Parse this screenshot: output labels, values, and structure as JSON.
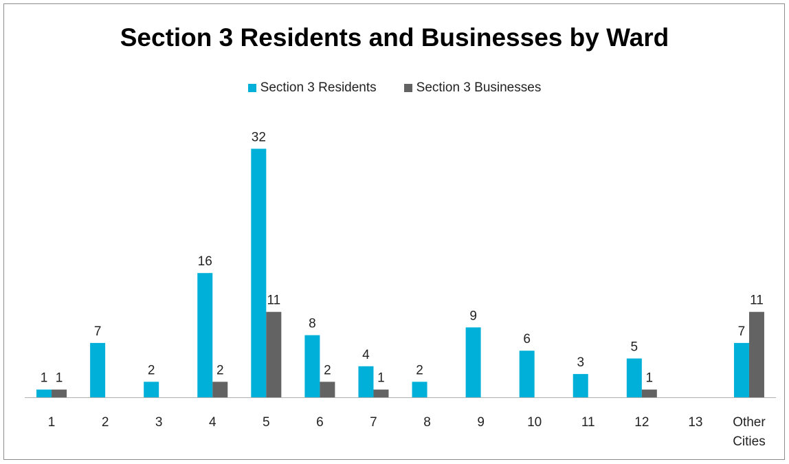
{
  "chart_data": {
    "type": "bar",
    "title": "Section 3 Residents and Businesses by Ward",
    "xlabel": "",
    "ylabel": "",
    "categories": [
      "1",
      "2",
      "3",
      "4",
      "5",
      "6",
      "7",
      "8",
      "9",
      "10",
      "11",
      "12",
      "13",
      "Other Cities"
    ],
    "series": [
      {
        "name": "Section 3 Residents",
        "color": "#00b0d8",
        "values": [
          1,
          7,
          2,
          16,
          32,
          8,
          4,
          2,
          9,
          6,
          3,
          5,
          null,
          7
        ]
      },
      {
        "name": "Section 3 Businesses",
        "color": "#636363",
        "values": [
          1,
          null,
          null,
          2,
          11,
          2,
          1,
          null,
          null,
          null,
          null,
          1,
          null,
          11
        ]
      }
    ],
    "ylim": [
      0,
      35
    ],
    "grid": false,
    "legend_position": "top"
  }
}
